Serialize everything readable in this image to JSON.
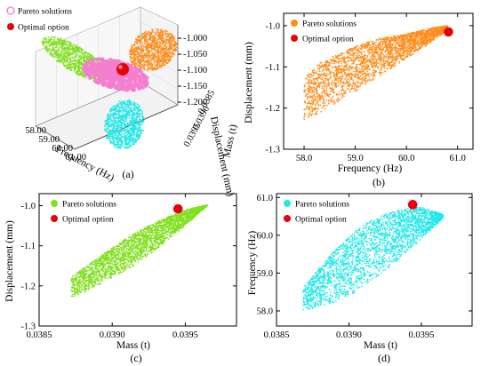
{
  "figure": {
    "colors": {
      "orange": "#FF8C1A",
      "green": "#80E01E",
      "cyan": "#22E8E8",
      "pink": "#F47FD0",
      "red": "#E8000B"
    },
    "legend_labels": {
      "pareto": "Pareto solutions",
      "optimal": "Optimal option"
    }
  },
  "chart_data": [
    {
      "id": "a",
      "type": "scatter",
      "panel_label": "(a)",
      "view": "3d",
      "axes": {
        "frequency": {
          "label": "Frequency (Hz)",
          "ticks": [
            "58.00",
            "59.00",
            "60.00",
            "61.00"
          ],
          "range": [
            58.0,
            61.0
          ]
        },
        "mass": {
          "label": "Mass (t)",
          "ticks": [
            "0.0385",
            "0.0390",
            "0.0395"
          ],
          "range": [
            0.0385,
            0.0395
          ]
        },
        "displacement": {
          "label": "Displacement (mm)",
          "ticks": [
            "-1.000",
            "-1.050",
            "-1.100",
            "-1.150",
            "-1.200"
          ],
          "range": [
            -1.2,
            -1.0
          ]
        }
      },
      "series": [
        {
          "name": "Pareto solutions",
          "color": "pink",
          "marker": "hollow-circle"
        },
        {
          "name": "Optimal option",
          "color": "red",
          "marker": "sphere"
        }
      ],
      "projections": [
        "Frequency-Displacement (orange)",
        "Mass-Displacement (green)",
        "Mass-Frequency (cyan)"
      ]
    },
    {
      "id": "b",
      "type": "scatter",
      "panel_label": "(b)",
      "xlabel": "Frequency (Hz)",
      "ylabel": "Displacement (mm)",
      "xlim": [
        57.6,
        61.3
      ],
      "ylim": [
        -1.3,
        -0.97
      ],
      "xticks": [
        58.0,
        59.0,
        60.0,
        61.0
      ],
      "xtick_labels": [
        "58.0",
        "59.0",
        "60.0",
        "61.0"
      ],
      "yticks": [
        -1.3,
        -1.2,
        -1.1,
        -1.0
      ],
      "ytick_labels": [
        "-1.3",
        "-1.2",
        "-1.1",
        "-1.0"
      ],
      "series": [
        {
          "name": "Pareto solutions",
          "color": "orange",
          "region": {
            "lower": [
              [
                58.0,
                -1.23
              ],
              [
                58.5,
                -1.2
              ],
              [
                59.0,
                -1.16
              ],
              [
                59.5,
                -1.12
              ],
              [
                60.0,
                -1.08
              ],
              [
                60.5,
                -1.04
              ],
              [
                60.8,
                -1.01
              ]
            ],
            "upper": [
              [
                57.85,
                -1.15
              ],
              [
                58.3,
                -1.09
              ],
              [
                59.0,
                -1.05
              ],
              [
                59.5,
                -1.03
              ],
              [
                60.0,
                -1.02
              ],
              [
                60.5,
                -1.005
              ],
              [
                60.8,
                -1.0
              ]
            ]
          },
          "count": 2600
        },
        {
          "name": "Optimal option",
          "color": "red",
          "points": [
            [
              60.82,
              -1.015
            ]
          ]
        }
      ]
    },
    {
      "id": "c",
      "type": "scatter",
      "panel_label": "(c)",
      "xlabel": "Mass (t)",
      "ylabel": "Displacement (mm)",
      "xlim": [
        0.0385,
        0.03985
      ],
      "ylim": [
        -1.3,
        -0.97
      ],
      "xticks": [
        0.0385,
        0.039,
        0.0395
      ],
      "xtick_labels": [
        "0.0385",
        "0.0390",
        "0.0395"
      ],
      "yticks": [
        -1.3,
        -1.2,
        -1.1,
        -1.0
      ],
      "ytick_labels": [
        "-1.3",
        "-1.2",
        "-1.1",
        "-1.0"
      ],
      "series": [
        {
          "name": "Pareto solutions",
          "color": "green",
          "region": {
            "lower": [
              [
                0.03872,
                -1.23
              ],
              [
                0.0389,
                -1.2
              ],
              [
                0.0391,
                -1.16
              ],
              [
                0.0393,
                -1.11
              ],
              [
                0.0395,
                -1.05
              ],
              [
                0.03965,
                -1.0
              ]
            ],
            "upper": [
              [
                0.03868,
                -1.19
              ],
              [
                0.0389,
                -1.13
              ],
              [
                0.0391,
                -1.08
              ],
              [
                0.0393,
                -1.04
              ],
              [
                0.0395,
                -1.01
              ],
              [
                0.03965,
                -0.998
              ]
            ]
          },
          "count": 2600
        },
        {
          "name": "Optimal option",
          "color": "red",
          "points": [
            [
              0.03945,
              -1.008
            ]
          ]
        }
      ]
    },
    {
      "id": "d",
      "type": "scatter",
      "panel_label": "(d)",
      "xlabel": "Mass (t)",
      "ylabel": "Frequency (Hz)",
      "xlim": [
        0.0385,
        0.03985
      ],
      "ylim": [
        57.6,
        61.1
      ],
      "xticks": [
        0.0385,
        0.039,
        0.0395
      ],
      "xtick_labels": [
        "0.0385",
        "0.0390",
        "0.0395"
      ],
      "yticks": [
        58.0,
        59.0,
        60.0,
        61.0
      ],
      "ytick_labels": [
        "58.0",
        "59.0",
        "60.0",
        "61.0"
      ],
      "series": [
        {
          "name": "Pareto solutions",
          "color": "cyan",
          "region": {
            "lower": [
              [
                0.03868,
                58.0
              ],
              [
                0.0389,
                58.2
              ],
              [
                0.0391,
                58.6
              ],
              [
                0.0393,
                59.2
              ],
              [
                0.0395,
                59.9
              ],
              [
                0.03965,
                60.45
              ]
            ],
            "upper": [
              [
                0.03868,
                58.6
              ],
              [
                0.0389,
                59.6
              ],
              [
                0.0391,
                60.3
              ],
              [
                0.0393,
                60.65
              ],
              [
                0.0395,
                60.75
              ],
              [
                0.03965,
                60.55
              ]
            ]
          },
          "count": 2600
        },
        {
          "name": "Optimal option",
          "color": "red",
          "points": [
            [
              0.03944,
              60.81
            ]
          ]
        }
      ]
    }
  ]
}
